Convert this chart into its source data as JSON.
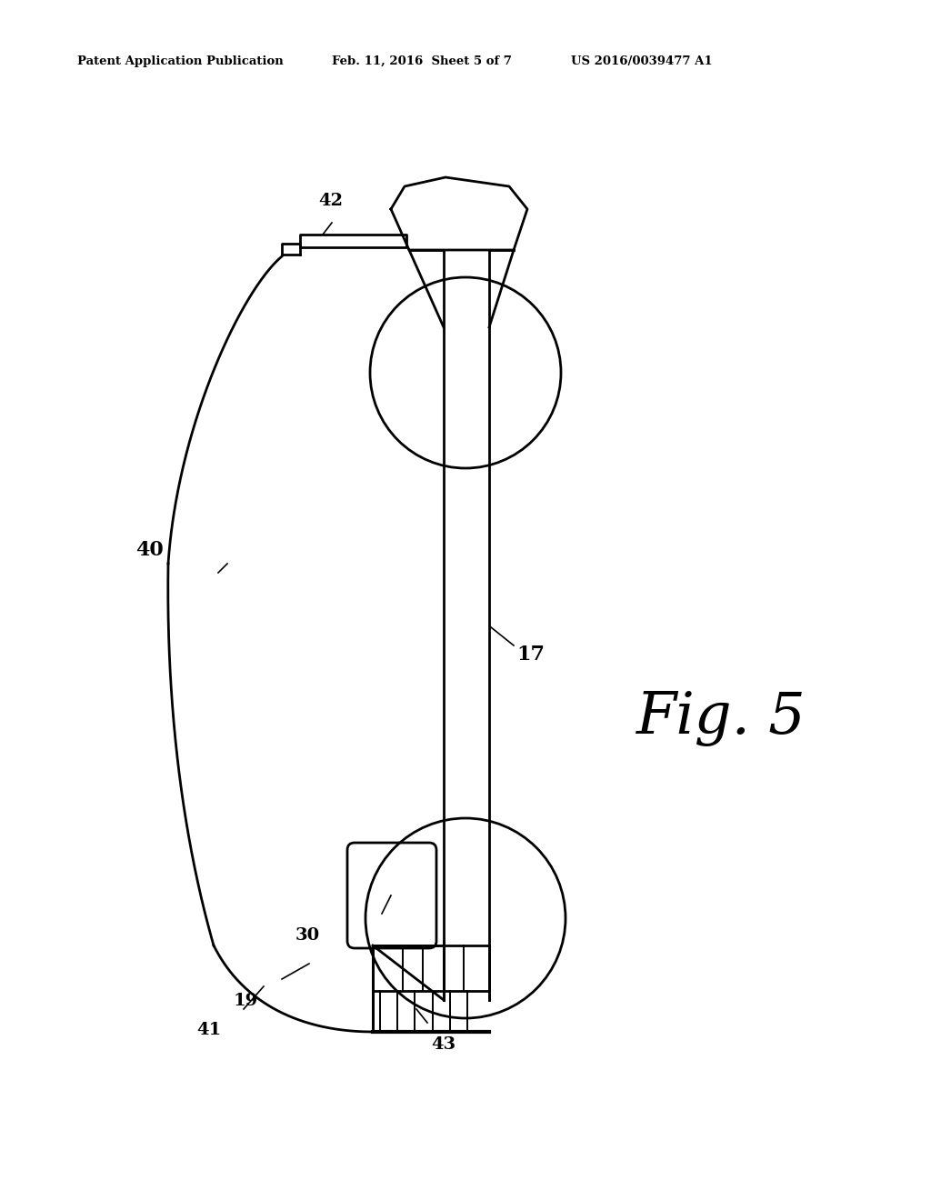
{
  "bg_color": "#ffffff",
  "line_color": "#000000",
  "header_left": "Patent Application Publication",
  "header_mid": "Feb. 11, 2016  Sheet 5 of 7",
  "header_right": "US 2016/0039477 A1",
  "fig_label": "Fig. 5",
  "label_40": "40",
  "label_17": "17",
  "label_42": "42",
  "label_19": "19",
  "label_30": "30",
  "label_41": "41",
  "label_43": "43"
}
